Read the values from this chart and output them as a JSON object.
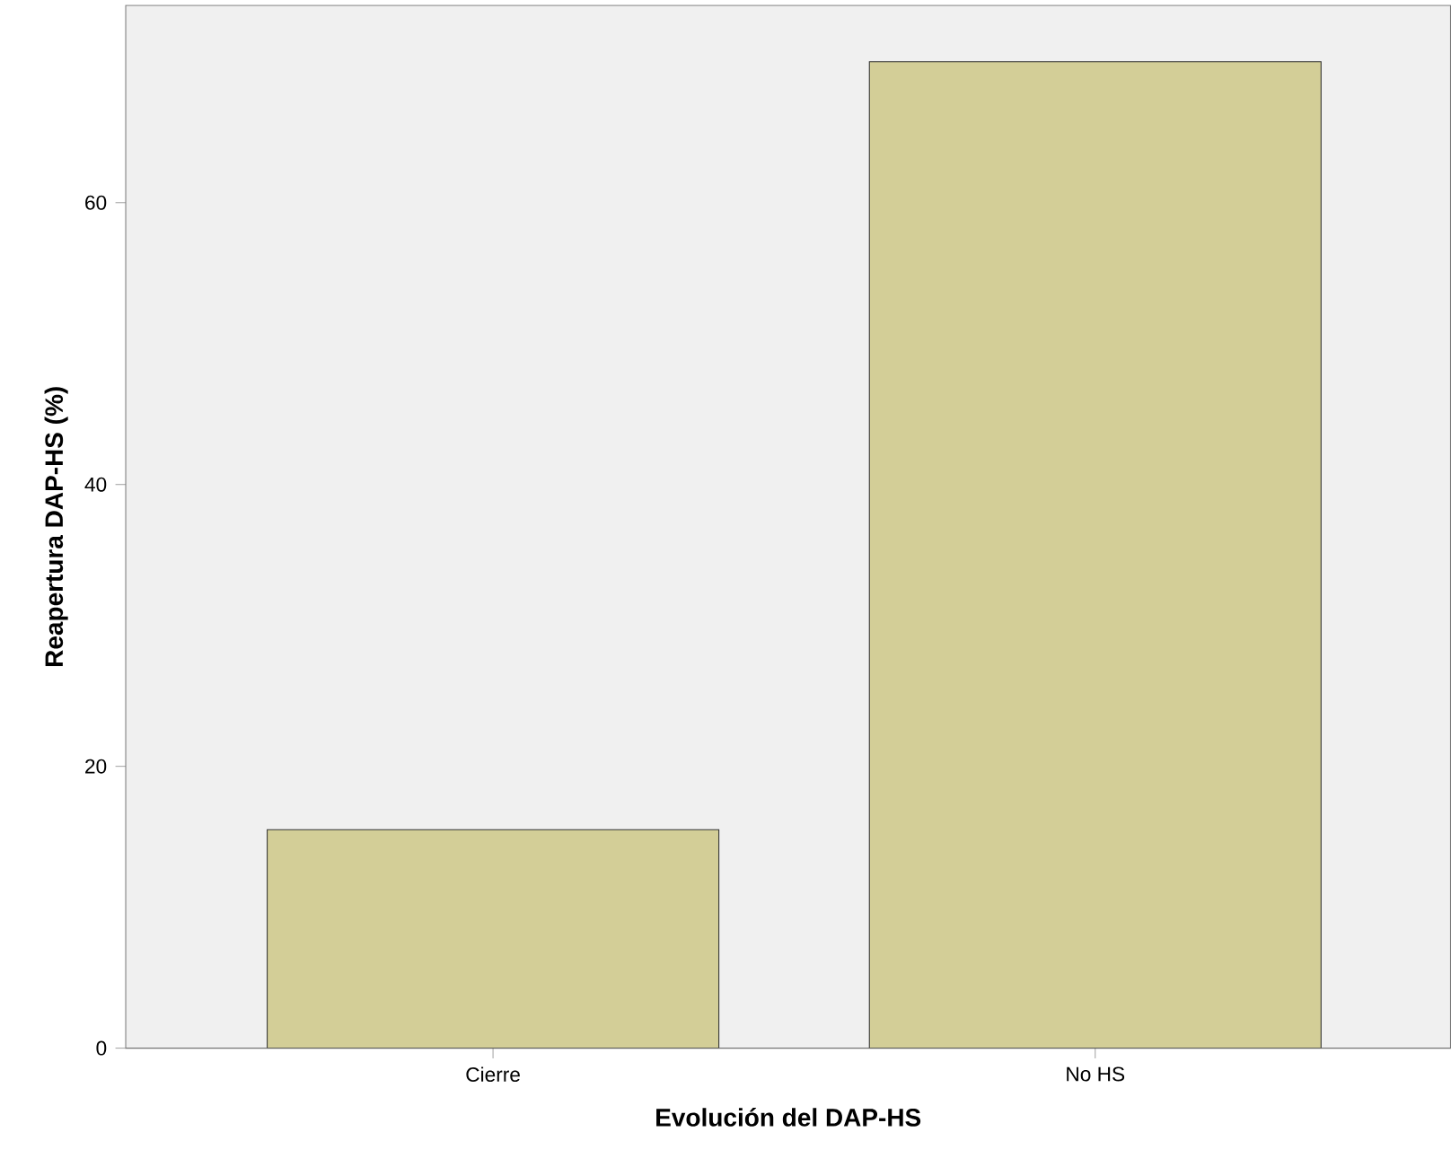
{
  "chart_data": {
    "type": "bar",
    "xlabel": "Evolución del DAP-HS",
    "ylabel": "Reapertura DAP-HS (%)",
    "categories": [
      "Cierre",
      "No HS"
    ],
    "values": [
      15.5,
      70
    ],
    "color": "#d3ce97",
    "ylim": [
      0,
      74
    ],
    "yticks": [
      0,
      20,
      40,
      60
    ],
    "grid": false
  }
}
